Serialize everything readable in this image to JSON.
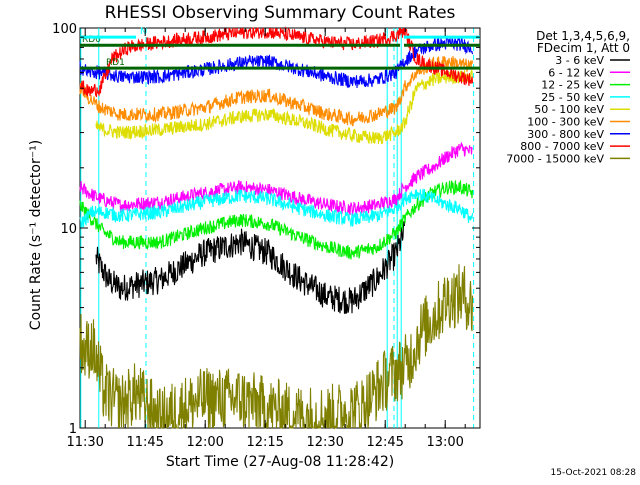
{
  "chart_data": {
    "type": "line",
    "title": "RHESSI Observing Summary Count Rates",
    "xlabel": "Start Time (27-Aug-08 11:28:42)",
    "ylabel": "Count Rate (s⁻¹ detector⁻¹)",
    "y_scale": "log",
    "ylim": [
      1,
      100
    ],
    "xlim_minutes": [
      0,
      100
    ],
    "x_ticks": [
      {
        "label": "11:30",
        "t": 1.3
      },
      {
        "label": "11:45",
        "t": 16.3
      },
      {
        "label": "12:00",
        "t": 31.3
      },
      {
        "label": "12:15",
        "t": 46.3
      },
      {
        "label": "12:30",
        "t": 61.3
      },
      {
        "label": "12:45",
        "t": 76.3
      },
      {
        "label": "13:00",
        "t": 91.3
      }
    ],
    "y_ticks": [
      {
        "label": "1",
        "v": 1
      },
      {
        "label": "10",
        "v": 10
      },
      {
        "label": "100",
        "v": 100
      }
    ],
    "legend_header": [
      "Det 1,3,4,5,6,9,",
      "FDecim 1, Att 0"
    ],
    "series": [
      {
        "name": "3 - 6 keV",
        "color": "#000000",
        "x": [
          4,
          7,
          10,
          20,
          31,
          40,
          47,
          55,
          62,
          68,
          74,
          79,
          81
        ],
        "y": [
          7,
          5.5,
          5,
          5.5,
          7.5,
          8.5,
          7.5,
          5.5,
          4.5,
          4.3,
          5.5,
          7.5,
          9.5
        ]
      },
      {
        "name": "6 - 12 keV",
        "color": "#ff00ff",
        "x": [
          0,
          2,
          5,
          10,
          20,
          31,
          40,
          47,
          55,
          62,
          68,
          74,
          79,
          81,
          84,
          88,
          92,
          95,
          98
        ],
        "y": [
          16,
          15,
          14,
          13,
          13.5,
          15,
          16,
          15.5,
          14,
          13,
          12.5,
          13,
          14,
          16,
          18,
          20,
          23,
          25,
          24
        ]
      },
      {
        "name": "12 - 25 keV",
        "color": "#00ee00",
        "x": [
          0,
          3,
          6,
          10,
          20,
          31,
          40,
          47,
          55,
          62,
          68,
          74,
          79,
          81,
          84,
          88,
          92,
          95,
          98
        ],
        "y": [
          13,
          11,
          9.5,
          8.5,
          8.5,
          10,
          11,
          10.5,
          9,
          8,
          7.5,
          8,
          9.5,
          11,
          13,
          15,
          16,
          16,
          15
        ]
      },
      {
        "name": "25 - 50 keV",
        "color": "#00ffff",
        "x": [
          0,
          3,
          6,
          10,
          20,
          31,
          40,
          47,
          55,
          62,
          68,
          74,
          79,
          81,
          84,
          88,
          92,
          95,
          98
        ],
        "y": [
          10.5,
          12,
          12,
          11.5,
          12,
          13.5,
          14.5,
          14,
          12.5,
          11.5,
          11,
          11.5,
          12.5,
          14,
          15,
          14,
          13,
          12.5,
          11
        ]
      },
      {
        "name": "50 - 100 keV",
        "color": "#dddd00",
        "x": [
          4,
          6,
          10,
          20,
          31,
          40,
          47,
          55,
          62,
          68,
          74,
          79,
          81,
          84,
          88,
          92,
          95,
          98
        ],
        "y": [
          32,
          31,
          30,
          31,
          33,
          36,
          37,
          34,
          31,
          29,
          28,
          30,
          33,
          50,
          55,
          57,
          57,
          57
        ]
      },
      {
        "name": "100 - 300 keV",
        "color": "#ff8c00",
        "x": [
          0,
          2,
          5,
          10,
          20,
          31,
          40,
          47,
          55,
          62,
          68,
          74,
          79,
          81,
          84,
          88,
          92,
          95,
          98
        ],
        "y": [
          50,
          45,
          40,
          37,
          37,
          40,
          45,
          46,
          41,
          37,
          35,
          37,
          40,
          50,
          60,
          66,
          68,
          66,
          64
        ]
      },
      {
        "name": "300 - 800 keV",
        "color": "#0000ff",
        "x": [
          0,
          2,
          5,
          10,
          20,
          31,
          40,
          47,
          55,
          62,
          68,
          74,
          79,
          81,
          84,
          88,
          92,
          95,
          98
        ],
        "y": [
          64,
          60,
          60,
          57,
          57,
          62,
          67,
          68,
          62,
          57,
          54,
          55,
          60,
          68,
          77,
          82,
          84,
          83,
          80
        ]
      },
      {
        "name": "800 - 7000 keV",
        "color": "#ff0000",
        "x": [
          0,
          2,
          5,
          8,
          12,
          20,
          31,
          40,
          47,
          55,
          62,
          68,
          74,
          79,
          81,
          84,
          88,
          92,
          95,
          98
        ],
        "y": [
          52,
          48,
          50,
          70,
          80,
          85,
          90,
          95,
          96,
          90,
          85,
          83,
          86,
          92,
          98,
          70,
          64,
          60,
          57,
          55
        ]
      },
      {
        "name": "7000 - 15000 keV",
        "color": "#808000",
        "x": [
          0,
          1,
          3,
          6,
          10,
          14,
          20,
          25,
          31,
          40,
          47,
          55,
          62,
          70,
          77,
          82,
          85,
          89,
          92,
          96,
          98
        ],
        "y": [
          2.8,
          2.4,
          2.6,
          1.5,
          1.3,
          1.5,
          1.1,
          1.25,
          1.4,
          1.4,
          1.25,
          1.15,
          1.15,
          1.25,
          1.8,
          2.1,
          3.0,
          3.7,
          4.5,
          4.6,
          4.0
        ]
      }
    ],
    "state_bars": [
      {
        "label": "RD0",
        "color": "#006400",
        "v": 82,
        "segments": [
          [
            0,
            80
          ],
          [
            81,
            100
          ]
        ]
      },
      {
        "label": "RD1",
        "color": "#006400",
        "v": 63,
        "segments": [
          [
            0,
            100
          ]
        ]
      },
      {
        "label": "N",
        "color": "#00ffff",
        "v": 90,
        "segments": [
          [
            0,
            14
          ],
          [
            81,
            100
          ]
        ]
      }
    ],
    "vertical_markers": {
      "solid": [
        0.2,
        4.7,
        76.8,
        79.3,
        80.3
      ],
      "dashed": [
        16.5,
        78.5,
        98.4
      ],
      "color": "#00ffff"
    },
    "grid": false
  },
  "footer": {
    "date_stamp": "15-Oct-2021 08:28"
  },
  "colors": {
    "background": "#ffffff",
    "axes": "#000000"
  }
}
